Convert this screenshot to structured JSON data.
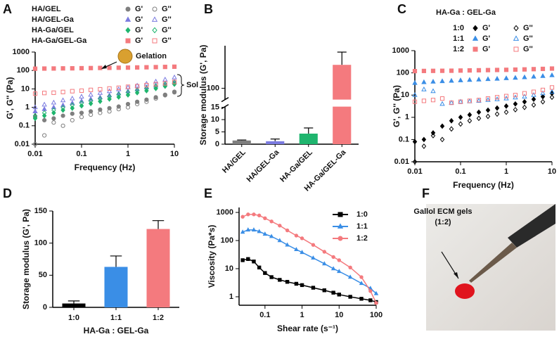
{
  "chart_data": [
    {
      "panel": "A",
      "type": "scatter",
      "x_label": "Frequency (Hz)",
      "y_label": "G', G'' (Pa)",
      "log_x": true,
      "log_y": true,
      "xlim": [
        0.01,
        10
      ],
      "ylim": [
        0.01,
        1000
      ],
      "xticks": [
        0.01,
        0.1,
        1,
        10
      ],
      "yticks": [
        0.01,
        0.1,
        1,
        10,
        100,
        1000
      ],
      "x": [
        0.01,
        0.0158,
        0.0251,
        0.0398,
        0.0631,
        0.1,
        0.158,
        0.251,
        0.398,
        0.631,
        1,
        1.58,
        2.51,
        3.98,
        6.31,
        10
      ],
      "groups": [
        {
          "name": "HA/GEL",
          "series": [
            {
              "name": "G'",
              "color": "#7f7f7f",
              "marker": "circle",
              "filled": true,
              "values": [
                0.3,
                0.2,
                0.25,
                0.35,
                0.45,
                0.5,
                0.6,
                0.75,
                0.9,
                1.1,
                1.5,
                2,
                2.6,
                3.5,
                4.8,
                6.5
              ]
            },
            {
              "name": "G''",
              "color": "#7f7f7f",
              "marker": "circle",
              "filled": false,
              "values": [
                0.01,
                0.03,
                0.15,
                0.1,
                0.2,
                0.3,
                0.4,
                0.5,
                0.6,
                0.8,
                1,
                1.5,
                2,
                3,
                4.5,
                7
              ]
            }
          ]
        },
        {
          "name": "HA/GEL-Ga",
          "series": [
            {
              "name": "G'",
              "color": "#7b7be0",
              "marker": "triangle",
              "filled": true,
              "values": [
                0.6,
                0.8,
                1,
                1.3,
                1.7,
                2.2,
                2.8,
                3.5,
                4.5,
                5.7,
                7.5,
                9.5,
                12,
                15,
                19,
                24
              ]
            },
            {
              "name": "G''",
              "color": "#7b7be0",
              "marker": "triangle",
              "filled": false,
              "values": [
                1,
                1.4,
                1.8,
                2.4,
                3,
                3.8,
                4.8,
                6,
                7.5,
                9.5,
                12,
                15,
                19,
                25,
                32,
                42
              ]
            }
          ]
        },
        {
          "name": "HA-Ga/GEL",
          "series": [
            {
              "name": "G'",
              "color": "#1fb56e",
              "marker": "diamond",
              "filled": true,
              "values": [
                0.25,
                0.35,
                0.5,
                0.7,
                0.9,
                1.2,
                1.6,
                2.1,
                2.8,
                3.6,
                4.7,
                6.2,
                8,
                10.5,
                14,
                18
              ]
            },
            {
              "name": "G''",
              "color": "#1fb56e",
              "marker": "diamond",
              "filled": false,
              "values": [
                0.35,
                0.5,
                0.7,
                0.95,
                1.3,
                1.7,
                2.2,
                2.9,
                3.8,
                5,
                6.5,
                8.5,
                11,
                14,
                18,
                23
              ]
            }
          ]
        },
        {
          "name": "HA-Ga/GEL-Ga",
          "series": [
            {
              "name": "G'",
              "color": "#f47a7e",
              "marker": "square",
              "filled": true,
              "values": [
                125,
                127,
                128,
                130,
                131,
                133,
                135,
                137,
                139,
                141,
                143,
                146,
                149,
                152,
                156,
                160
              ]
            },
            {
              "name": "G''",
              "color": "#f47a7e",
              "marker": "square",
              "filled": false,
              "values": [
                5.5,
                6,
                6.2,
                6.8,
                7.5,
                8,
                8.8,
                9.5,
                10.5,
                11.5,
                13,
                14,
                16,
                18,
                20,
                24
              ]
            }
          ]
        }
      ],
      "annotations": [
        "Gelation",
        "Sol"
      ]
    },
    {
      "panel": "B",
      "type": "bar",
      "y_label": "Storage modulus (G', Pa)",
      "categories": [
        "HA/GEL",
        "HA/GEL-Ga",
        "HA-Ga/GEL",
        "HA-Ga/GEL-Ga"
      ],
      "values": [
        1.5,
        1.2,
        4.3,
        122
      ],
      "errors": [
        0.2,
        0.9,
        2.3,
        12
      ],
      "colors": [
        "#7f7f7f",
        "#7b7be0",
        "#1fb56e",
        "#f47a7e"
      ],
      "ylim": [
        0,
        140
      ],
      "axis_break": [
        15,
        90
      ],
      "yticks": [
        0,
        5,
        10,
        15,
        100
      ]
    },
    {
      "panel": "C",
      "type": "scatter",
      "x_label": "Frequency (Hz)",
      "y_label": "G', G'' (Pa)",
      "legend_title": "HA-Ga : GEL-Ga",
      "log_x": true,
      "log_y": true,
      "xlim": [
        0.01,
        10
      ],
      "ylim": [
        0.01,
        1000
      ],
      "xticks": [
        0.01,
        0.1,
        1,
        10
      ],
      "yticks": [
        0.01,
        0.1,
        1,
        10,
        100,
        1000
      ],
      "x": [
        0.01,
        0.0158,
        0.0251,
        0.0398,
        0.0631,
        0.1,
        0.158,
        0.251,
        0.398,
        0.631,
        1,
        1.58,
        2.51,
        3.98,
        6.31,
        10
      ],
      "groups": [
        {
          "name": "1:0",
          "series": [
            {
              "name": "G'",
              "color": "#000000",
              "marker": "diamond",
              "filled": true,
              "values": [
                0.08,
                0.1,
                0.2,
                0.4,
                0.7,
                1,
                1.3,
                1.7,
                2.1,
                2.6,
                3.2,
                4,
                5,
                6.5,
                8.5,
                12
              ]
            },
            {
              "name": "G''",
              "color": "#000000",
              "marker": "diamond",
              "filled": false,
              "values": [
                0.01,
                0.05,
                0.15,
                0.1,
                0.3,
                0.5,
                0.7,
                0.9,
                1.1,
                1.4,
                1.7,
                2.2,
                2.8,
                3.6,
                5,
                8
              ]
            }
          ]
        },
        {
          "name": "1:1",
          "series": [
            {
              "name": "G'",
              "color": "#3a8ee6",
              "marker": "triangle",
              "filled": true,
              "values": [
                35,
                38,
                40,
                42,
                44,
                46,
                48,
                50,
                52,
                54,
                57,
                60,
                63,
                67,
                72,
                78
              ]
            },
            {
              "name": "G''",
              "color": "#3a8ee6",
              "marker": "triangle",
              "filled": false,
              "values": [
                10,
                18,
                15,
                4,
                4.5,
                5,
                5.2,
                5.5,
                6,
                6.5,
                7,
                7.8,
                8.5,
                10,
                12,
                14
              ]
            }
          ]
        },
        {
          "name": "1:2",
          "series": [
            {
              "name": "G'",
              "color": "#f47a7e",
              "marker": "square",
              "filled": true,
              "values": [
                120,
                122,
                123,
                124,
                125,
                127,
                129,
                131,
                133,
                135,
                137,
                140,
                143,
                147,
                151,
                156
              ]
            },
            {
              "name": "G''",
              "color": "#f47a7e",
              "marker": "square",
              "filled": false,
              "values": [
                5,
                5.5,
                6,
                7,
                4.5,
                5,
                5.5,
                6,
                7,
                8,
                9,
                10,
                12,
                14,
                17,
                22
              ]
            }
          ]
        }
      ]
    },
    {
      "panel": "D",
      "type": "bar",
      "x_label": "HA-Ga : GEL-Ga",
      "y_label": "Storage modulus (G', Pa)",
      "categories": [
        "1:0",
        "1:1",
        "1:2"
      ],
      "values": [
        6,
        63,
        122
      ],
      "errors": [
        4,
        17,
        13
      ],
      "colors": [
        "#000000",
        "#3a8ee6",
        "#f47a7e"
      ],
      "ylim": [
        0,
        150
      ],
      "yticks": [
        0,
        50,
        100,
        150
      ]
    },
    {
      "panel": "E",
      "type": "line",
      "x_label": "Shear rate (s⁻¹)",
      "y_label": "Viscosity (Pa*s)",
      "log_x": true,
      "log_y": true,
      "xlim": [
        0.02,
        100
      ],
      "ylim": [
        0.5,
        1500
      ],
      "xticks": [
        0.1,
        1,
        10,
        100
      ],
      "yticks": [
        1,
        10,
        100,
        1000
      ],
      "legend": "right",
      "x": [
        0.025,
        0.035,
        0.05,
        0.07,
        0.1,
        0.15,
        0.25,
        0.4,
        0.7,
        1,
        2,
        4,
        7,
        10,
        20,
        40,
        70,
        100
      ],
      "series": [
        {
          "name": "1:0",
          "color": "#000000",
          "marker": "square",
          "values": [
            20,
            22,
            18,
            11,
            7,
            5,
            4,
            3.4,
            2.9,
            2.6,
            2.1,
            1.7,
            1.4,
            1.2,
            1,
            0.85,
            0.75,
            0.65
          ]
        },
        {
          "name": "1:1",
          "color": "#3a8ee6",
          "marker": "triangle",
          "values": [
            200,
            240,
            240,
            210,
            170,
            140,
            100,
            70,
            48,
            38,
            24,
            15,
            10,
            8,
            5,
            3,
            2,
            1.3
          ]
        },
        {
          "name": "1:2",
          "color": "#f47a7e",
          "marker": "circle",
          "values": [
            700,
            850,
            850,
            780,
            620,
            480,
            340,
            230,
            150,
            120,
            70,
            40,
            26,
            20,
            11,
            5,
            1.6,
            0.6
          ]
        }
      ]
    }
  ],
  "photo": {
    "panel": "F",
    "label": [
      "Gallol ECM gels",
      "(1:2)"
    ]
  }
}
